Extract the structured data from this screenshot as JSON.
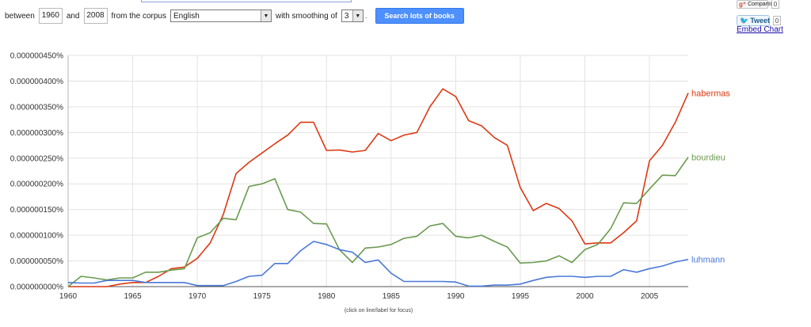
{
  "controls": {
    "between_label": "between",
    "start_year": "1960",
    "and_label": "and",
    "end_year": "2008",
    "corpus_label": "from the corpus",
    "corpus_value": "English",
    "smoothing_label": "with smoothing of",
    "smoothing_value": "3",
    "search_button": "Search lots of books"
  },
  "share": {
    "google_label": "Compartir",
    "google_count": "0",
    "tweet_label": "Tweet",
    "tweet_count": "0",
    "embed_label": "Embed Chart"
  },
  "colors": {
    "habermas": "#dc3912",
    "bourdieu": "#6a9a4f",
    "luhmann": "#4a78d8",
    "grid": "#e3e3e3",
    "axis": "#555555"
  },
  "chart_data": {
    "type": "line",
    "xlabel": "",
    "ylabel": "",
    "footnote": "(click on line/label for focus)",
    "xlim": [
      1960,
      2008
    ],
    "ylim": [
      0,
      4.5e-07
    ],
    "x_ticks": [
      1960,
      1965,
      1970,
      1975,
      1980,
      1985,
      1990,
      1995,
      2000,
      2005
    ],
    "y_ticks": [
      "0.000000000%",
      "0.000000050%",
      "0.000000100%",
      "0.000000150%",
      "0.000000200%",
      "0.000000250%",
      "0.000000300%",
      "0.000000350%",
      "0.000000400%",
      "0.000000450%"
    ],
    "grid": true,
    "x": [
      1960,
      1961,
      1962,
      1963,
      1964,
      1965,
      1966,
      1967,
      1968,
      1969,
      1970,
      1971,
      1972,
      1973,
      1974,
      1975,
      1976,
      1977,
      1978,
      1979,
      1980,
      1981,
      1982,
      1983,
      1984,
      1985,
      1986,
      1987,
      1988,
      1989,
      1990,
      1991,
      1992,
      1993,
      1994,
      1995,
      1996,
      1997,
      1998,
      1999,
      2000,
      2001,
      2002,
      2003,
      2004,
      2005,
      2006,
      2007,
      2008
    ],
    "series": [
      {
        "name": "habermas",
        "values": [
          0.0,
          0.0,
          0.0,
          0.0,
          0.005,
          0.008,
          0.008,
          0.02,
          0.035,
          0.038,
          0.055,
          0.085,
          0.14,
          0.22,
          0.242,
          0.26,
          0.278,
          0.295,
          0.32,
          0.32,
          0.265,
          0.266,
          0.262,
          0.265,
          0.298,
          0.284,
          0.295,
          0.3,
          0.35,
          0.385,
          0.37,
          0.323,
          0.313,
          0.29,
          0.275,
          0.193,
          0.148,
          0.162,
          0.152,
          0.128,
          0.083,
          0.085,
          0.085,
          0.105,
          0.128,
          0.245,
          0.275,
          0.32,
          0.377
        ]
      },
      {
        "name": "bourdieu",
        "values": [
          0.0,
          0.02,
          0.017,
          0.013,
          0.017,
          0.017,
          0.028,
          0.028,
          0.032,
          0.035,
          0.095,
          0.105,
          0.133,
          0.13,
          0.195,
          0.2,
          0.21,
          0.15,
          0.145,
          0.123,
          0.122,
          0.072,
          0.047,
          0.075,
          0.077,
          0.082,
          0.094,
          0.098,
          0.118,
          0.123,
          0.098,
          0.095,
          0.1,
          0.088,
          0.077,
          0.046,
          0.047,
          0.05,
          0.06,
          0.047,
          0.072,
          0.082,
          0.113,
          0.163,
          0.162,
          0.19,
          0.217,
          0.216,
          0.252
        ]
      },
      {
        "name": "luhmann",
        "values": [
          0.008,
          0.007,
          0.007,
          0.012,
          0.012,
          0.012,
          0.008,
          0.008,
          0.008,
          0.008,
          0.002,
          0.002,
          0.002,
          0.01,
          0.02,
          0.022,
          0.045,
          0.045,
          0.07,
          0.088,
          0.082,
          0.072,
          0.067,
          0.047,
          0.052,
          0.026,
          0.01,
          0.01,
          0.01,
          0.01,
          0.009,
          0.001,
          0.001,
          0.003,
          0.003,
          0.005,
          0.012,
          0.018,
          0.02,
          0.02,
          0.018,
          0.02,
          0.02,
          0.033,
          0.028,
          0.035,
          0.04,
          0.048,
          0.053
        ]
      }
    ]
  }
}
